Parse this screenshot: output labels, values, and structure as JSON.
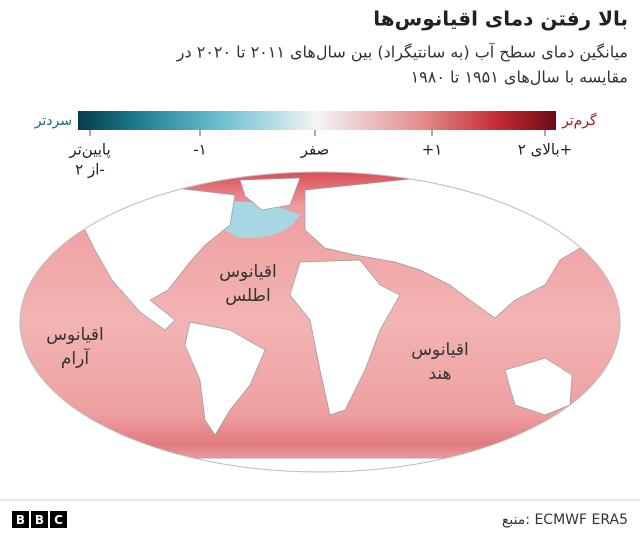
{
  "header": {
    "title": "بالا رفتن دمای اقیانوس‌ها",
    "subtitle": [
      "میانگین دمای سطح آب (به سانتیگراد) بین سال‌های ۲۰۱۱ تا ۲۰۲۰ در",
      "مقایسه با سال‌های ۱۹۵۱ تا ۱۹۸۰"
    ]
  },
  "legend": {
    "cold_label": "سردتر",
    "warm_label": "گرم‌تر",
    "ticks": [
      [
        "پایین‌تر",
        "از ۲-"
      ],
      [
        "-۱"
      ],
      [
        "صفر"
      ],
      [
        "+۱"
      ],
      [
        "بالای ۲+"
      ]
    ]
  },
  "map": {
    "labels": [
      [
        "اقیانوس",
        "اطلس"
      ],
      [
        "اقیانوس",
        "آرام"
      ],
      [
        "اقیانوس",
        "هند"
      ]
    ]
  },
  "footer": {
    "logo": [
      "B",
      "B",
      "C"
    ],
    "source": "منبع: ECMWF ERA5"
  }
}
